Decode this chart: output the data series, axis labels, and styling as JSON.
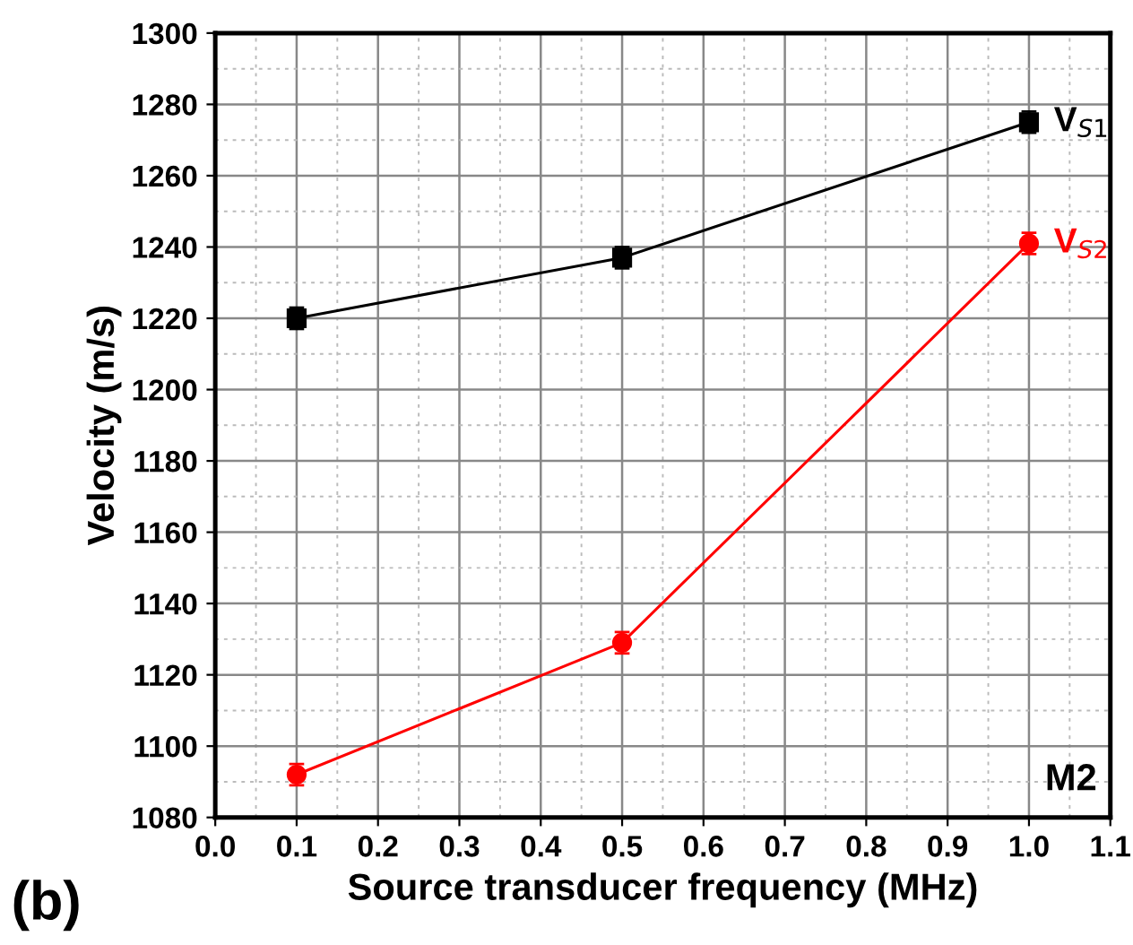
{
  "chart_data": {
    "type": "line",
    "xlabel": "Source transducer frequency (MHz)",
    "ylabel": "Velocity (m/s)",
    "x": [
      0.1,
      0.5,
      1.0
    ],
    "series": [
      {
        "name": "V$_{S1}$",
        "color": "#000000",
        "marker": "square",
        "values": [
          1220,
          1237,
          1275
        ],
        "errors": [
          3,
          3,
          3
        ]
      },
      {
        "name": "V$_{S2}$",
        "color": "#ff0000",
        "marker": "circle",
        "values": [
          1092,
          1129,
          1241
        ],
        "errors": [
          3,
          3,
          3
        ]
      }
    ],
    "xlim": [
      0.0,
      1.1
    ],
    "xticks": [
      {
        "value": 0.0,
        "label": "0.0"
      },
      {
        "value": 0.1,
        "label": "0.1"
      },
      {
        "value": 0.2,
        "label": "0.2"
      },
      {
        "value": 0.3,
        "label": "0.3"
      },
      {
        "value": 0.4,
        "label": "0.4"
      },
      {
        "value": 0.5,
        "label": "0.5"
      },
      {
        "value": 0.6,
        "label": "0.6"
      },
      {
        "value": 0.7,
        "label": "0.7"
      },
      {
        "value": 0.8,
        "label": "0.8"
      },
      {
        "value": 0.9,
        "label": "0.9"
      },
      {
        "value": 1.0,
        "label": "1.0"
      },
      {
        "value": 1.1,
        "label": "1.1"
      }
    ],
    "ylim": [
      1080,
      1300
    ],
    "yticks": [
      1080,
      1100,
      1120,
      1140,
      1160,
      1180,
      1200,
      1220,
      1240,
      1260,
      1280,
      1300
    ],
    "grid": true,
    "line_style": "solid",
    "annotations": [
      "M2",
      "(b)"
    ]
  }
}
